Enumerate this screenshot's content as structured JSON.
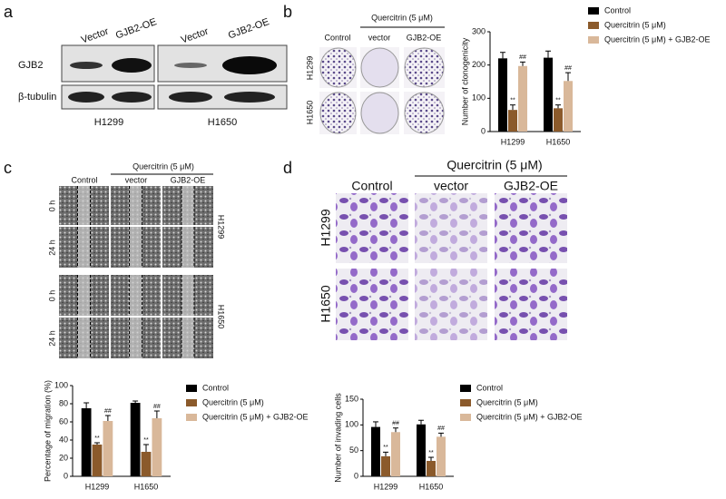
{
  "panel_labels": [
    "a",
    "b",
    "c",
    "d"
  ],
  "panel_a": {
    "columns": [
      "Vector",
      "GJB2-OE",
      "Vector",
      "GJB2-OE"
    ],
    "rows": [
      "GJB2",
      "β-tubulin"
    ],
    "cells": [
      "H1299",
      "H1650"
    ]
  },
  "panel_b": {
    "treatment": "Quercitrin (5 μM)",
    "columns": [
      "Control",
      "vector",
      "GJB2-OE"
    ],
    "rows": [
      "H1299",
      "H1650"
    ]
  },
  "panel_c": {
    "treatment": "Quercitrin (5 μM)",
    "columns": [
      "Control",
      "vector",
      "GJB2-OE"
    ],
    "times": [
      "0 h",
      "24 h",
      "0 h",
      "24 h"
    ],
    "cells": [
      "H1299",
      "H1650"
    ]
  },
  "panel_d": {
    "treatment": "Quercitrin (5 μM)",
    "columns": [
      "Control",
      "vector",
      "GJB2-OE"
    ],
    "rows": [
      "H1299",
      "H1650"
    ]
  },
  "chart_data": [
    {
      "type": "bar",
      "y_label": "Number of clonogenicity",
      "categories": [
        "H1299",
        "H1650"
      ],
      "ylim": [
        0,
        300
      ],
      "yticks": [
        0,
        100,
        200,
        300
      ],
      "series": [
        {
          "name": "Control",
          "color": "#000000",
          "values": [
            220,
            222
          ],
          "errors": [
            18,
            20
          ]
        },
        {
          "name": "Quercitrin (5 μM)",
          "color": "#8b5a2b",
          "values": [
            65,
            70
          ],
          "errors": [
            15,
            10
          ],
          "markers": [
            "**",
            "**"
          ]
        },
        {
          "name": "Quercitrin (5 μM) + GJB2-OE",
          "color": "#d9b89a",
          "values": [
            197,
            152
          ],
          "errors": [
            12,
            25
          ],
          "markers": [
            "##",
            "##"
          ]
        }
      ]
    },
    {
      "type": "bar",
      "y_label": "Percentage of migration (%)",
      "categories": [
        "H1299",
        "H1650"
      ],
      "ylim": [
        0,
        100
      ],
      "yticks": [
        0,
        20,
        40,
        60,
        80,
        100
      ],
      "series": [
        {
          "name": "Control",
          "color": "#000000",
          "values": [
            75,
            81
          ],
          "errors": [
            6,
            2
          ]
        },
        {
          "name": "Quercitrin (5 μM)",
          "color": "#8b5a2b",
          "values": [
            35,
            27
          ],
          "errors": [
            2,
            8
          ],
          "markers": [
            "**",
            "**"
          ]
        },
        {
          "name": "Quercitrin (5 μM) + GJB2-OE",
          "color": "#d9b89a",
          "values": [
            61,
            64
          ],
          "errors": [
            6,
            8
          ],
          "markers": [
            "##",
            "##"
          ]
        }
      ]
    },
    {
      "type": "bar",
      "y_label": "Number of invading cells",
      "categories": [
        "H1299",
        "H1650"
      ],
      "ylim": [
        0,
        150
      ],
      "yticks": [
        0,
        50,
        100,
        150
      ],
      "series": [
        {
          "name": "Control",
          "color": "#000000",
          "values": [
            96,
            101
          ],
          "errors": [
            10,
            8
          ]
        },
        {
          "name": "Quercitrin (5 μM)",
          "color": "#8b5a2b",
          "values": [
            39,
            30
          ],
          "errors": [
            8,
            7
          ],
          "markers": [
            "**",
            "**"
          ]
        },
        {
          "name": "Quercitrin (5 μM) + GJB2-OE",
          "color": "#d9b89a",
          "values": [
            86,
            77
          ],
          "errors": [
            8,
            7
          ],
          "markers": [
            "##",
            "##"
          ]
        }
      ]
    }
  ]
}
